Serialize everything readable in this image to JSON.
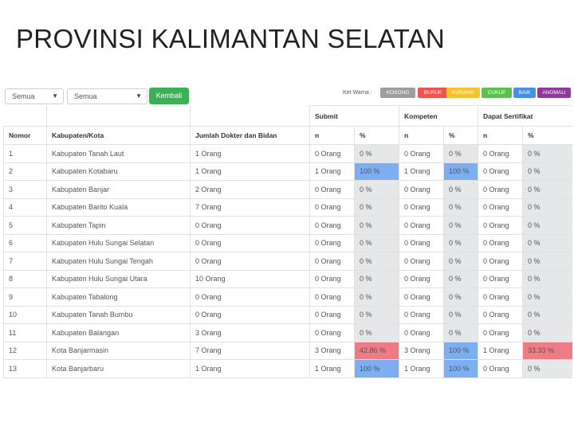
{
  "slide_title": "PROVINSI KALIMANTAN SELATAN",
  "filters": {
    "select1": "Semua",
    "select2": "Semua",
    "back_button": "Kembali"
  },
  "legend": {
    "label": "Ket Warna :",
    "items": [
      {
        "label": "KOSONG",
        "color": "#9e9e9e"
      },
      {
        "label": "BURUK",
        "color": "#ef5350"
      },
      {
        "label": "KURANG",
        "color": "#f4c430"
      },
      {
        "label": "CUKUP",
        "color": "#5cbf4f"
      },
      {
        "label": "BAIK",
        "color": "#4a90e2"
      },
      {
        "label": "ANOMALI",
        "color": "#8e3a9c"
      }
    ]
  },
  "table": {
    "group_headers": {
      "submit": "Submit",
      "kompeten": "Kompeten",
      "sertifikat": "Dapat Sertifikat"
    },
    "columns": {
      "nomor": "Nomor",
      "kabupaten": "Kabupaten/Kota",
      "jumlah": "Jumlah Dokter dan Bidan",
      "n": "n",
      "pct": "%"
    },
    "rows": [
      {
        "no": "1",
        "name": "Kabupaten Tanah Laut",
        "jumlah": "1 Orang",
        "s_n": "0 Orang",
        "s_p": "0 %",
        "k_n": "0 Orang",
        "k_p": "0 %",
        "d_n": "0 Orang",
        "d_p": "0 %"
      },
      {
        "no": "2",
        "name": "Kabupaten Kotabaru",
        "jumlah": "1 Orang",
        "s_n": "1 Orang",
        "s_p": "100 %",
        "k_n": "1 Orang",
        "k_p": "100 %",
        "d_n": "0 Orang",
        "d_p": "0 %"
      },
      {
        "no": "3",
        "name": "Kabupaten Banjar",
        "jumlah": "2 Orang",
        "s_n": "0 Orang",
        "s_p": "0 %",
        "k_n": "0 Orang",
        "k_p": "0 %",
        "d_n": "0 Orang",
        "d_p": "0 %"
      },
      {
        "no": "4",
        "name": "Kabupaten Barito Kuala",
        "jumlah": "7 Orang",
        "s_n": "0 Orang",
        "s_p": "0 %",
        "k_n": "0 Orang",
        "k_p": "0 %",
        "d_n": "0 Orang",
        "d_p": "0 %"
      },
      {
        "no": "5",
        "name": "Kabupaten Tapin",
        "jumlah": "0 Orang",
        "s_n": "0 Orang",
        "s_p": "0 %",
        "k_n": "0 Orang",
        "k_p": "0 %",
        "d_n": "0 Orang",
        "d_p": "0 %"
      },
      {
        "no": "6",
        "name": "Kabupaten Hulu Sungai Selatan",
        "jumlah": "0 Orang",
        "s_n": "0 Orang",
        "s_p": "0 %",
        "k_n": "0 Orang",
        "k_p": "0 %",
        "d_n": "0 Orang",
        "d_p": "0 %"
      },
      {
        "no": "7",
        "name": "Kabupaten Hulu Sungai Tengah",
        "jumlah": "0 Orang",
        "s_n": "0 Orang",
        "s_p": "0 %",
        "k_n": "0 Orang",
        "k_p": "0 %",
        "d_n": "0 Orang",
        "d_p": "0 %"
      },
      {
        "no": "8",
        "name": "Kabupaten Hulu Sungai Utara",
        "jumlah": "10 Orang",
        "s_n": "0 Orang",
        "s_p": "0 %",
        "k_n": "0 Orang",
        "k_p": "0 %",
        "d_n": "0 Orang",
        "d_p": "0 %"
      },
      {
        "no": "9",
        "name": "Kabupaten Tabalong",
        "jumlah": "0 Orang",
        "s_n": "0 Orang",
        "s_p": "0 %",
        "k_n": "0 Orang",
        "k_p": "0 %",
        "d_n": "0 Orang",
        "d_p": "0 %"
      },
      {
        "no": "10",
        "name": "Kabupaten Tanah Bumbu",
        "jumlah": "0 Orang",
        "s_n": "0 Orang",
        "s_p": "0 %",
        "k_n": "0 Orang",
        "k_p": "0 %",
        "d_n": "0 Orang",
        "d_p": "0 %"
      },
      {
        "no": "11",
        "name": "Kabupaten Balangan",
        "jumlah": "3 Orang",
        "s_n": "0 Orang",
        "s_p": "0 %",
        "k_n": "0 Orang",
        "k_p": "0 %",
        "d_n": "0 Orang",
        "d_p": "0 %"
      },
      {
        "no": "12",
        "name": "Kota Banjarmasin",
        "jumlah": "7 Orang",
        "s_n": "3 Orang",
        "s_p": "42.86 %",
        "k_n": "3 Orang",
        "k_p": "100 %",
        "d_n": "1 Orang",
        "d_p": "33.33 %"
      },
      {
        "no": "13",
        "name": "Kota Banjarbaru",
        "jumlah": "1 Orang",
        "s_n": "1 Orang",
        "s_p": "100 %",
        "k_n": "1 Orang",
        "k_p": "100 %",
        "d_n": "0 Orang",
        "d_p": "0 %"
      }
    ],
    "cell_colors": {
      "grey": "#e6e7e8",
      "blue": "#7eaef2",
      "red": "#ef7b84"
    }
  }
}
